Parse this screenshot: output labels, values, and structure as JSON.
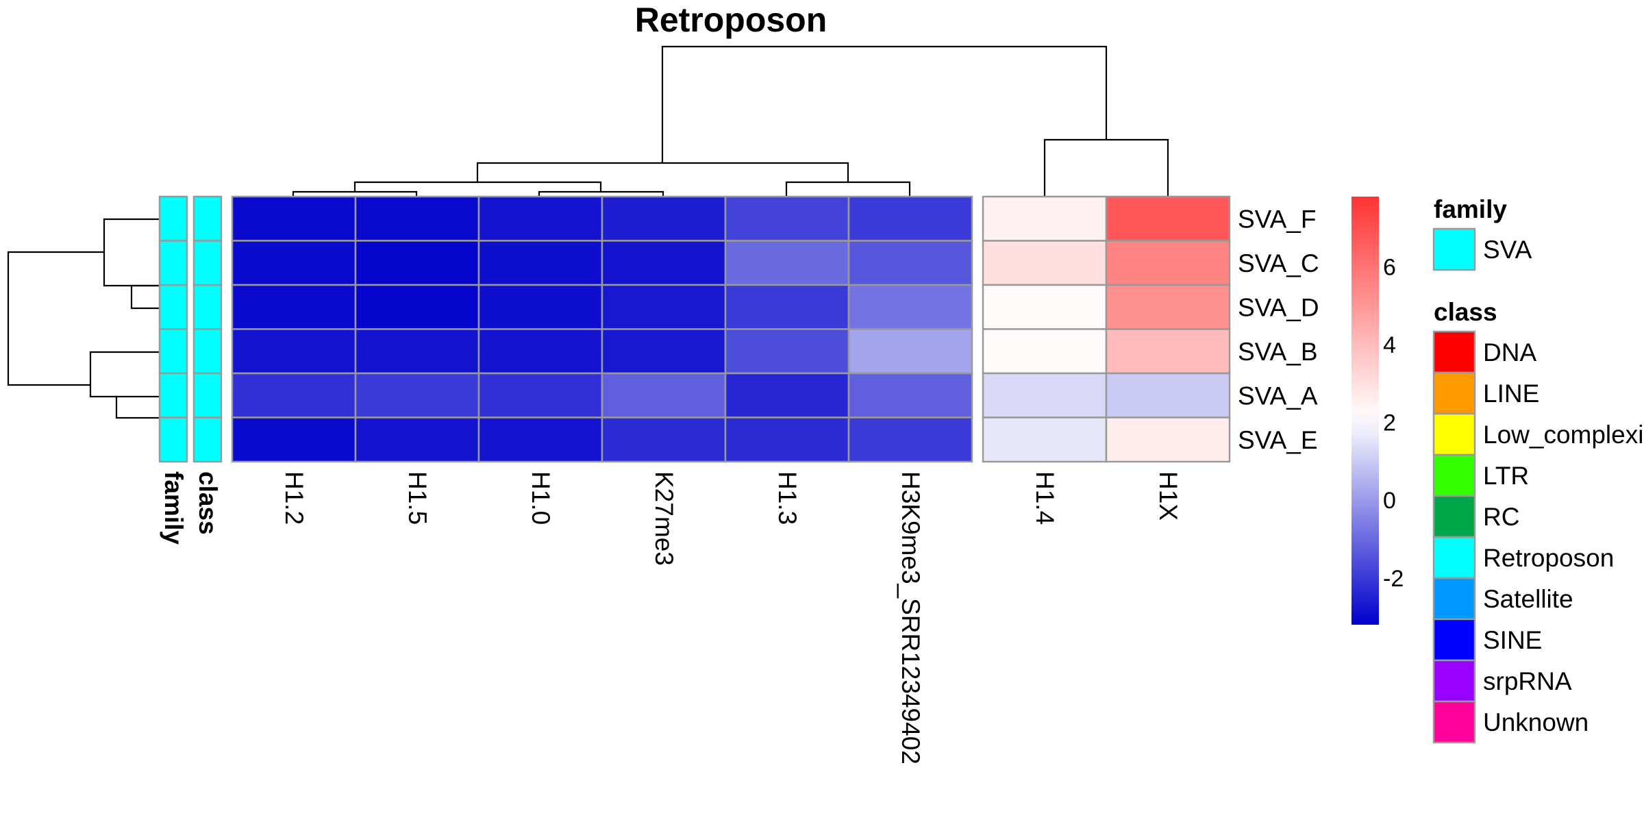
{
  "chart_data": {
    "type": "heatmap",
    "title": "Retroposon",
    "rows": [
      "SVA_F",
      "SVA_C",
      "SVA_D",
      "SVA_B",
      "SVA_A",
      "SVA_E"
    ],
    "columns": [
      "H1.2",
      "H1.5",
      "H1.0",
      "K27me3",
      "H1.3",
      "H3K9me3_SRR12349402",
      "H1.4",
      "H1X"
    ],
    "column_split_after": 6,
    "values": [
      [
        -3.0,
        -3.0,
        -2.8,
        -2.6,
        -1.8,
        -2.0,
        2.5,
        6.8
      ],
      [
        -3.0,
        -3.1,
        -2.9,
        -2.8,
        -1.0,
        -1.4,
        3.0,
        5.5
      ],
      [
        -3.0,
        -3.1,
        -2.9,
        -2.7,
        -2.0,
        -0.8,
        2.2,
        5.2
      ],
      [
        -2.8,
        -2.8,
        -2.8,
        -2.7,
        -1.6,
        0.2,
        2.2,
        4.0
      ],
      [
        -2.2,
        -2.0,
        -2.2,
        -1.2,
        -2.4,
        -1.2,
        1.3,
        1.0
      ],
      [
        -3.0,
        -2.8,
        -2.8,
        -2.3,
        -2.3,
        -2.0,
        1.6,
        2.6
      ]
    ],
    "color_scale": {
      "min": -3.2,
      "mid": 2.1,
      "max": 7.8,
      "low_color": "#0000CC",
      "mid_color": "#FFFFFF",
      "high_color": "#FF3333",
      "ticks": [
        -2,
        0,
        2,
        4,
        6
      ]
    },
    "row_annotations": [
      {
        "name": "family",
        "values": [
          "SVA",
          "SVA",
          "SVA",
          "SVA",
          "SVA",
          "SVA"
        ]
      },
      {
        "name": "class",
        "values": [
          "Retroposon",
          "Retroposon",
          "Retroposon",
          "Retroposon",
          "Retroposon",
          "Retroposon"
        ]
      }
    ],
    "legends": {
      "family": {
        "title": "family",
        "items": [
          {
            "label": "SVA",
            "color": "#00FFFF"
          }
        ]
      },
      "class": {
        "title": "class",
        "items": [
          {
            "label": "DNA",
            "color": "#FF0000"
          },
          {
            "label": "LINE",
            "color": "#FF9900"
          },
          {
            "label": "Low_complexity",
            "color": "#FFFF00"
          },
          {
            "label": "LTR",
            "color": "#33FF00"
          },
          {
            "label": "RC",
            "color": "#00A64A"
          },
          {
            "label": "Retroposon",
            "color": "#00FFFF"
          },
          {
            "label": "Satellite",
            "color": "#0099FF"
          },
          {
            "label": "SINE",
            "color": "#0000FF"
          },
          {
            "label": "srpRNA",
            "color": "#9900FF"
          },
          {
            "label": "Unknown",
            "color": "#FF0099"
          }
        ]
      }
    }
  }
}
